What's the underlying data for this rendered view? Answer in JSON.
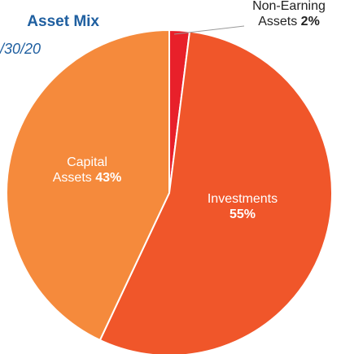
{
  "chart_data": {
    "type": "pie",
    "title": "Asset Mix",
    "subtitle": "/30/20",
    "categories": [
      "Non-Earning Assets",
      "Investments",
      "Capital Assets"
    ],
    "values": [
      2,
      55,
      43
    ],
    "value_labels": [
      "2%",
      "55%",
      "43%"
    ],
    "colors": [
      "#e8202a",
      "#f0562a",
      "#f58a3c"
    ]
  }
}
